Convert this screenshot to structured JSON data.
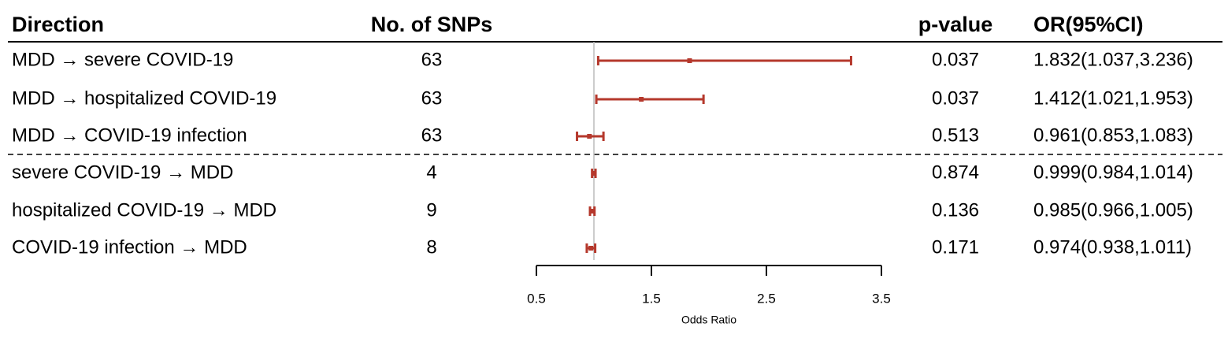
{
  "chart_data": {
    "type": "forest",
    "columns": [
      "Direction",
      "No. of SNPs",
      "p-value",
      "OR(95%CI)"
    ],
    "categories": [
      "MDD → severe COVID-19",
      "MDD → hospitalized COVID-19",
      "MDD → COVID-19 infection",
      "severe COVID-19 → MDD",
      "hospitalized COVID-19 → MDD",
      "COVID-19 infection → MDD"
    ],
    "snps": [
      63,
      63,
      63,
      4,
      9,
      8
    ],
    "p_values": [
      0.037,
      0.037,
      0.513,
      0.874,
      0.136,
      0.171
    ],
    "values": [
      1.832,
      1.412,
      0.961,
      0.999,
      0.985,
      0.974
    ],
    "lower": [
      1.037,
      1.021,
      0.853,
      0.984,
      0.966,
      0.938
    ],
    "upper": [
      3.236,
      1.953,
      1.083,
      1.014,
      1.005,
      1.011
    ],
    "value_labels": [
      "1.832(1.037,3.236)",
      "1.412(1.021,1.953)",
      "0.961(0.853,1.083)",
      "0.999(0.984,1.014)",
      "0.985(0.966,1.005)",
      "0.974(0.938,1.011)"
    ],
    "color": "#b5382c",
    "reference": 1,
    "xlim": [
      0.5,
      3.5
    ],
    "xticks": [
      0.5,
      1.5,
      2.5,
      3.5
    ],
    "xlabel": "Odds Ratio"
  }
}
